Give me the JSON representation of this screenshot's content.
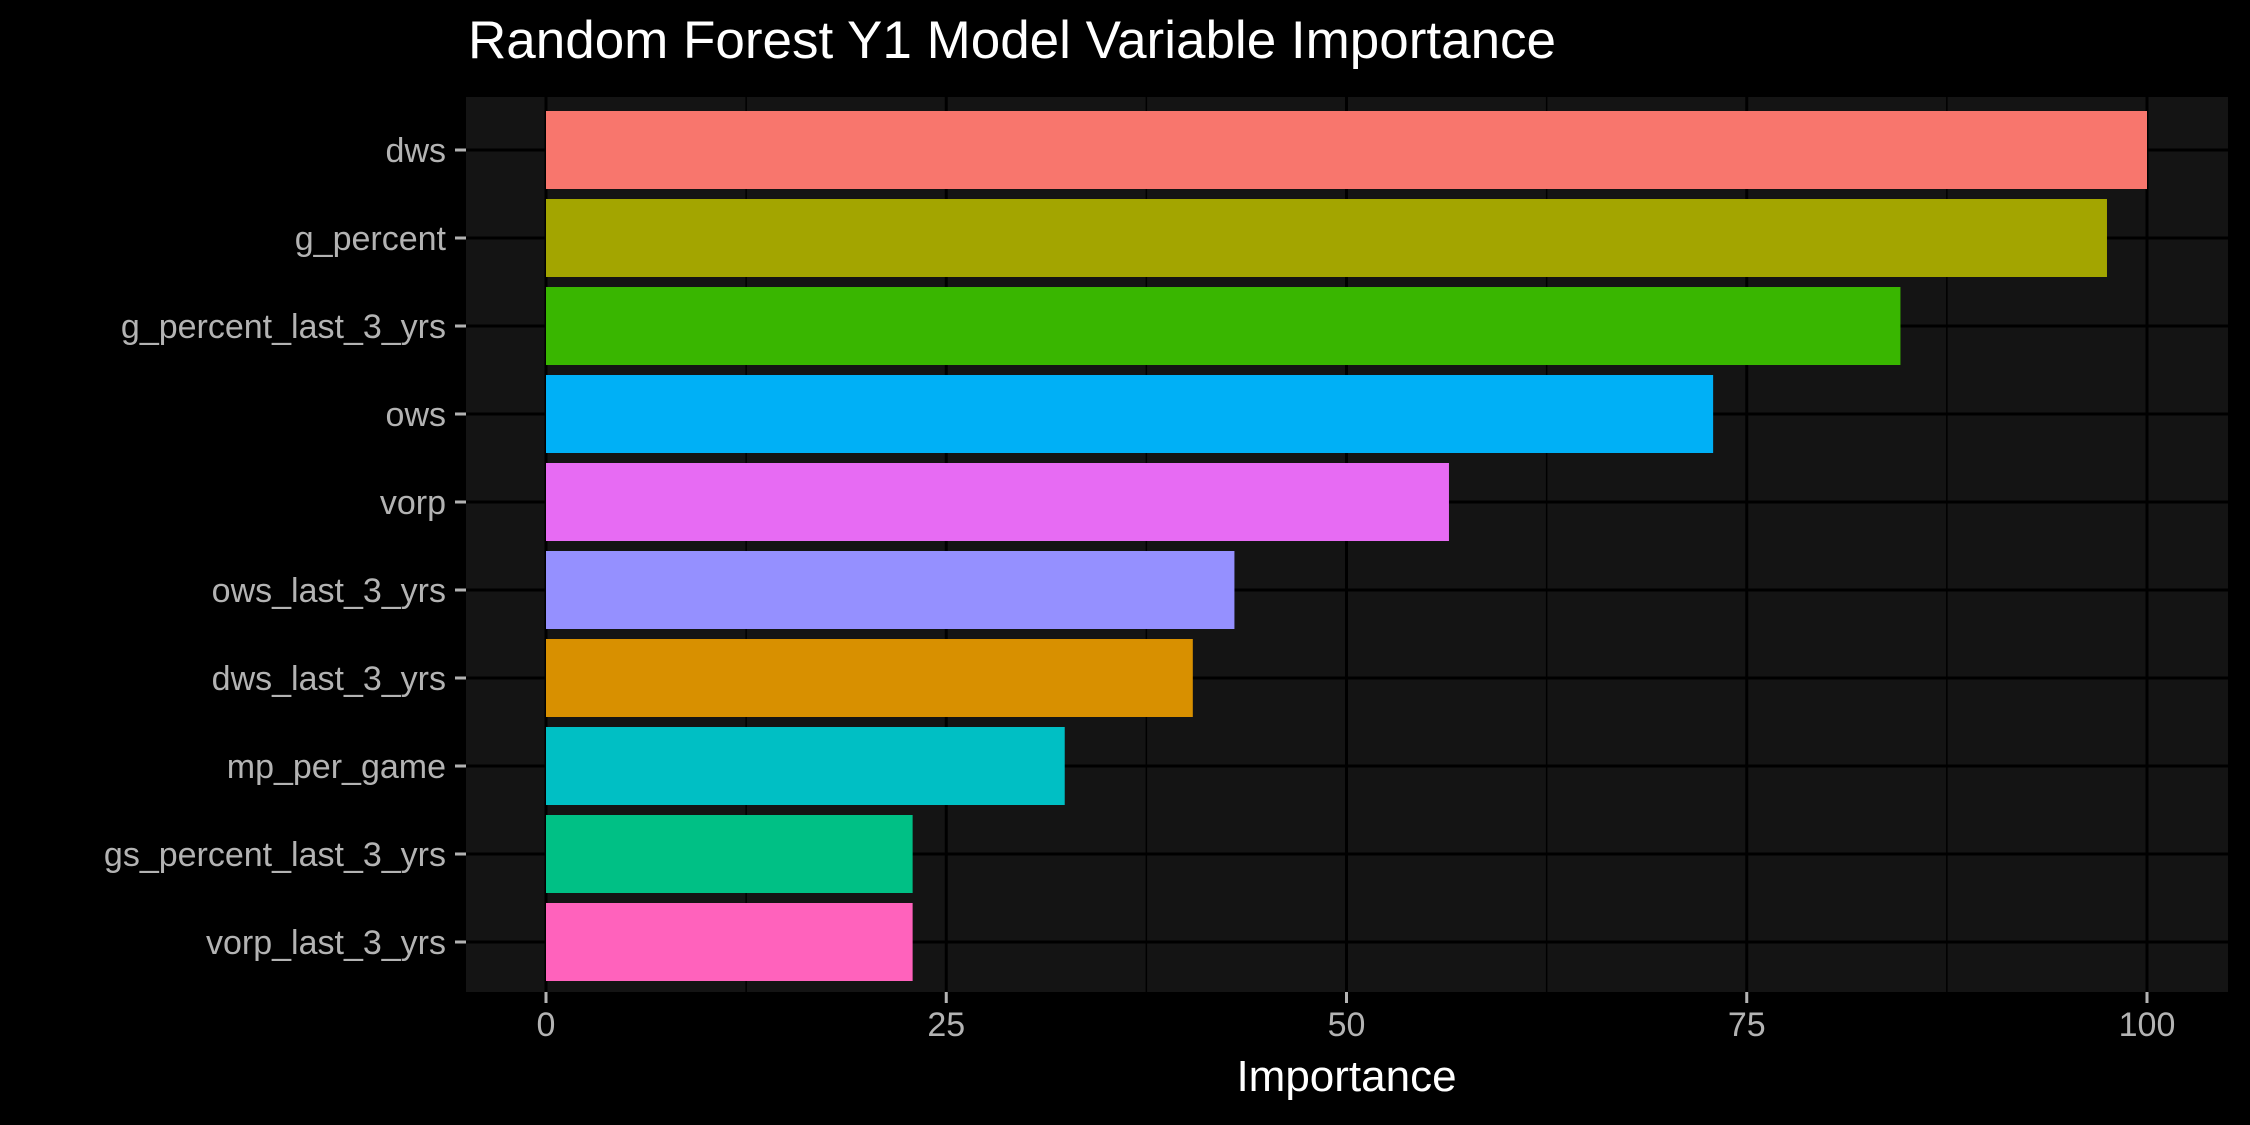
{
  "chart_data": {
    "type": "bar",
    "orientation": "horizontal",
    "title": "Random Forest Y1 Model Variable Importance",
    "xlabel": "Importance",
    "ylabel": "",
    "categories": [
      "dws",
      "g_percent",
      "g_percent_last_3_yrs",
      "ows",
      "vorp",
      "ows_last_3_yrs",
      "dws_last_3_yrs",
      "mp_per_game",
      "gs_percent_last_3_yrs",
      "vorp_last_3_yrs"
    ],
    "values": [
      100,
      97.5,
      84.6,
      72.9,
      56.4,
      43.0,
      40.4,
      32.4,
      22.9,
      22.9
    ],
    "bar_colors": [
      "#F8766D",
      "#A3A500",
      "#39B600",
      "#00B0F6",
      "#E76BF3",
      "#9590FF",
      "#D89000",
      "#00BFC4",
      "#00C085",
      "#FF62BC"
    ],
    "xlim": [
      -5,
      104
    ],
    "xticks": [
      "0",
      "25",
      "50",
      "75",
      "100"
    ],
    "grid": true,
    "legend": "none",
    "background": "#000000",
    "panel_background": "#141414",
    "grid_color": "#000000"
  }
}
